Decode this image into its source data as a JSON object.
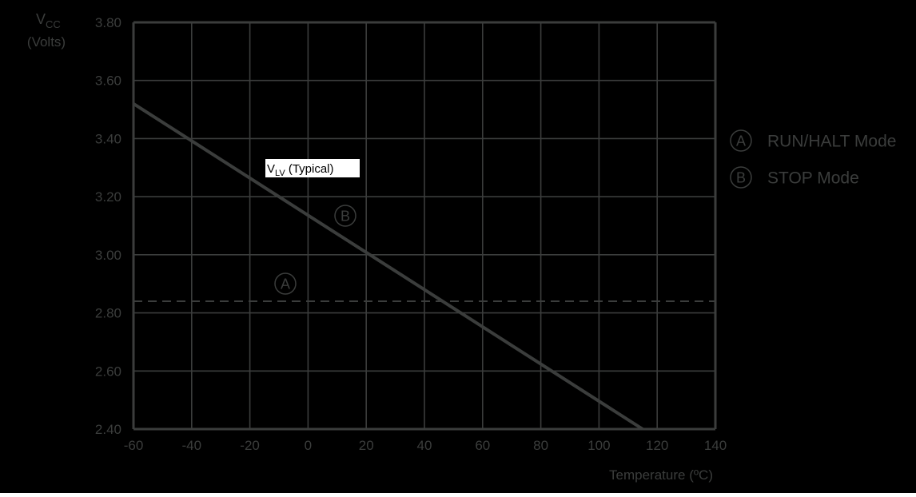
{
  "colors": {
    "background": "#000000",
    "grid": "#3b3d3c",
    "line": "#3b3d3c",
    "text": "#3b3d3c",
    "label_box": "#ffffff",
    "label_text": "#000000"
  },
  "chart_data": {
    "type": "line",
    "ylabel_main": "V",
    "ylabel_sub": "CC",
    "ylabel_unit": "(Volts)",
    "xlabel": "Temperature (ºC)",
    "xlim": [
      -60,
      140
    ],
    "ylim": [
      2.4,
      3.8
    ],
    "x_ticks": [
      -60,
      -40,
      -20,
      0,
      20,
      40,
      60,
      80,
      100,
      120,
      140
    ],
    "x_tick_labels": [
      "-60",
      "-40",
      "-20",
      "0",
      "20",
      "40",
      "60",
      "80",
      "100",
      "120",
      "140"
    ],
    "y_ticks": [
      2.4,
      2.6,
      2.8,
      3.0,
      3.2,
      3.4,
      3.6,
      3.8
    ],
    "y_tick_labels": [
      "2.40",
      "2.60",
      "2.80",
      "3.00",
      "3.20",
      "3.40",
      "3.60",
      "3.80"
    ],
    "grid": true,
    "series": [
      {
        "name": "STOP Mode",
        "marker": "B",
        "style": "solid",
        "x": [
          -60,
          115
        ],
        "y": [
          3.52,
          2.4
        ]
      },
      {
        "name": "RUN/HALT Mode",
        "marker": "A",
        "style": "dashed",
        "x": [
          -60,
          140
        ],
        "y": [
          2.84,
          2.84
        ]
      }
    ],
    "annotation": {
      "main": "V",
      "sub": "LV",
      "rest": " (Typical)"
    },
    "legend_position": "right",
    "legend": [
      {
        "marker": "A",
        "label": "RUN/HALT Mode"
      },
      {
        "marker": "B",
        "label": "STOP Mode"
      }
    ]
  }
}
